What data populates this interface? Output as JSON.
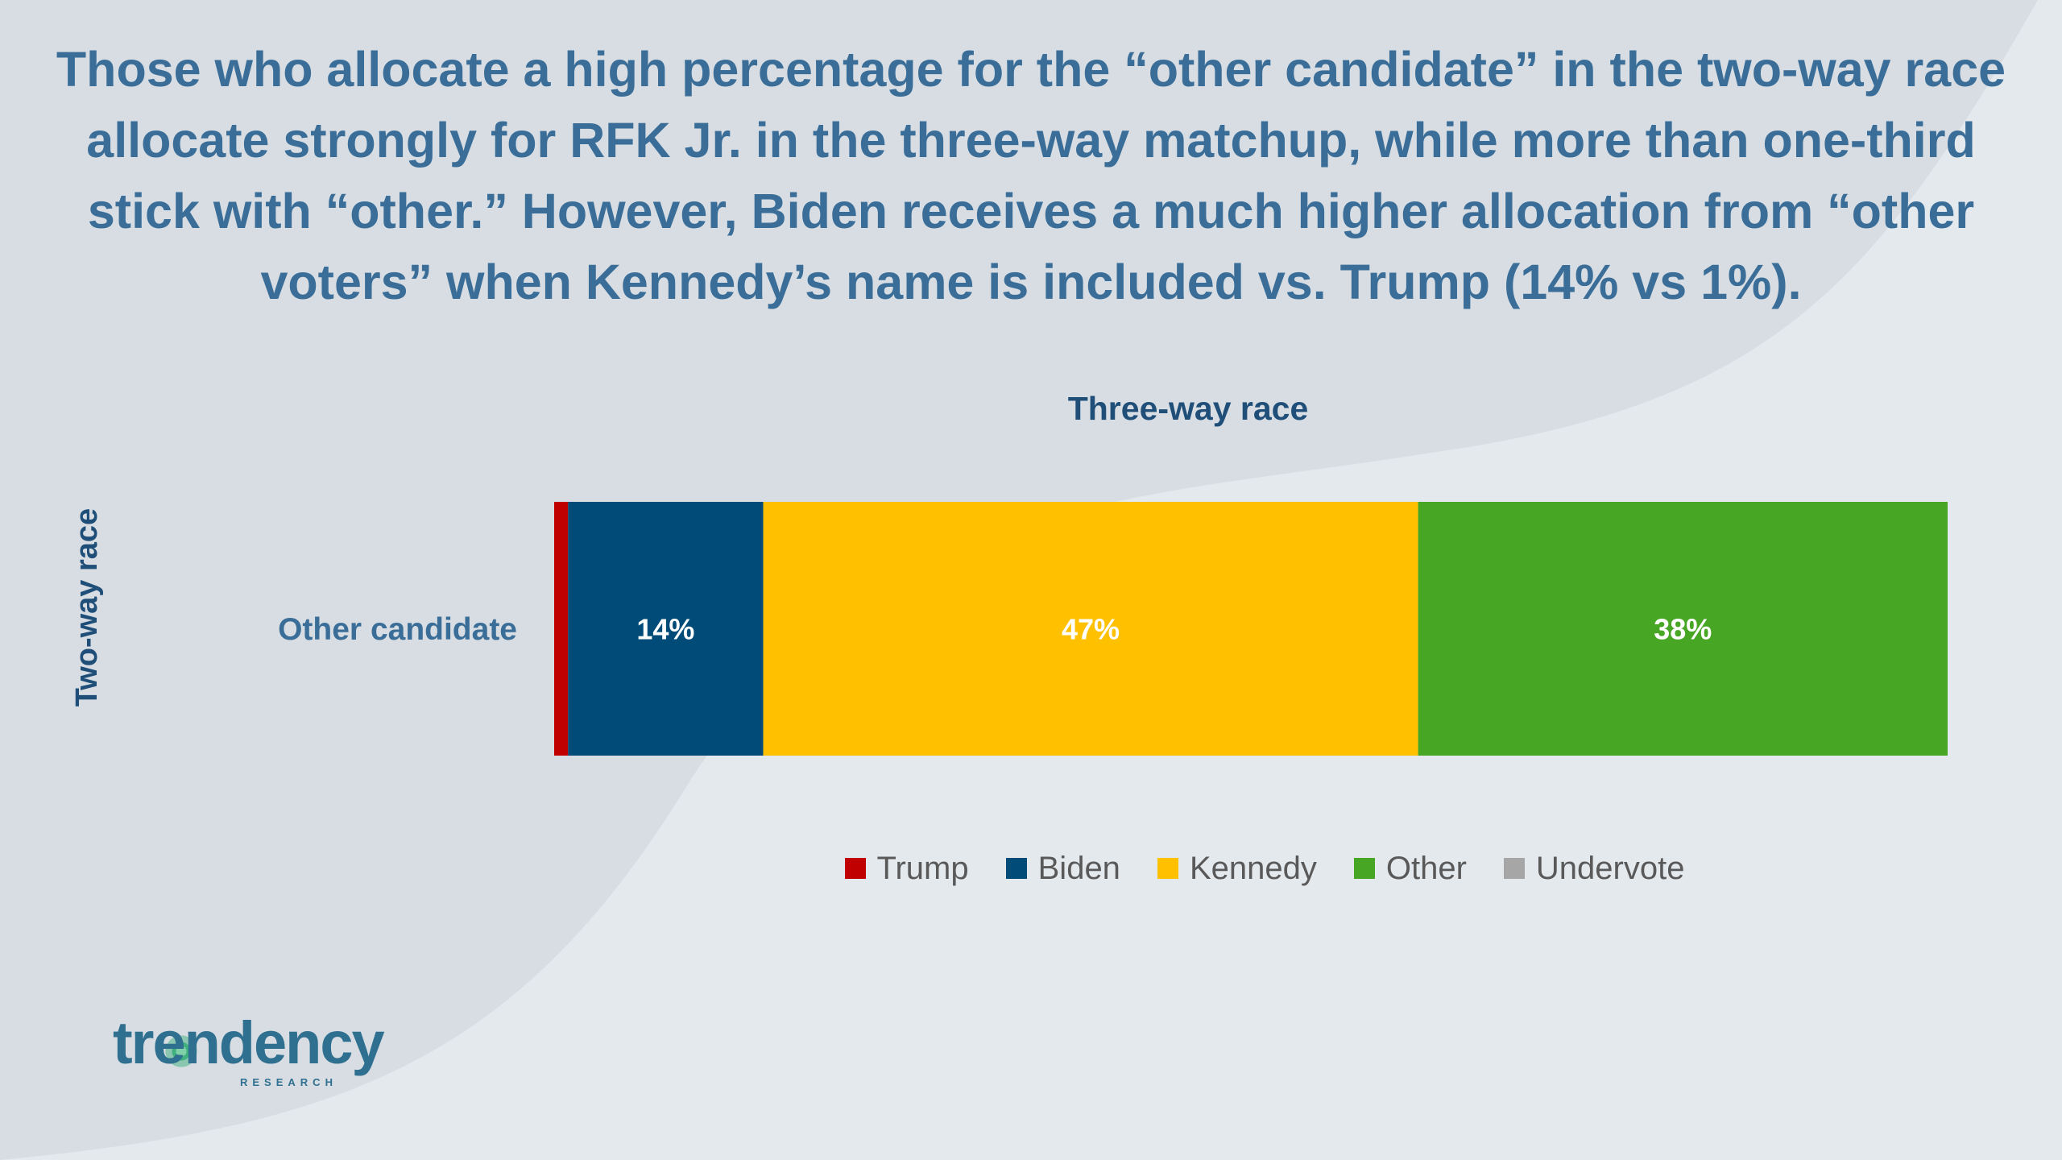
{
  "headline": "Those who allocate a high percentage for the “other candidate” in the two-way race allocate strongly for RFK Jr. in the three-way matchup, while more than one-third stick with “other.” However, Biden receives a much higher allocation from “other voters” when Kennedy’s name is included vs. Trump (14% vs 1%).",
  "logo": {
    "text": "trendency",
    "sub": "RESEARCH"
  },
  "colors": {
    "headline": "#3a6e98",
    "background": "#e4e9ed",
    "curve_fill": "#d7dde2"
  },
  "chart_data": {
    "type": "bar",
    "orientation": "horizontal",
    "stacked": true,
    "title": "Three-way race",
    "ylabel": "Two-way race",
    "xlabel": "",
    "categories": [
      "Other candidate"
    ],
    "xlim": [
      0,
      100
    ],
    "grid": false,
    "legend_position": "bottom",
    "series": [
      {
        "name": "Trump",
        "values": [
          1
        ],
        "color": "#c00000",
        "label": ""
      },
      {
        "name": "Biden",
        "values": [
          14
        ],
        "color": "#004b78",
        "label": "14%"
      },
      {
        "name": "Kennedy",
        "values": [
          47
        ],
        "color": "#ffc000",
        "label": "47%"
      },
      {
        "name": "Other",
        "values": [
          38
        ],
        "color": "#47a624",
        "label": "38%"
      },
      {
        "name": "Undervote",
        "values": [
          0
        ],
        "color": "#a6a6a6",
        "label": ""
      }
    ]
  }
}
